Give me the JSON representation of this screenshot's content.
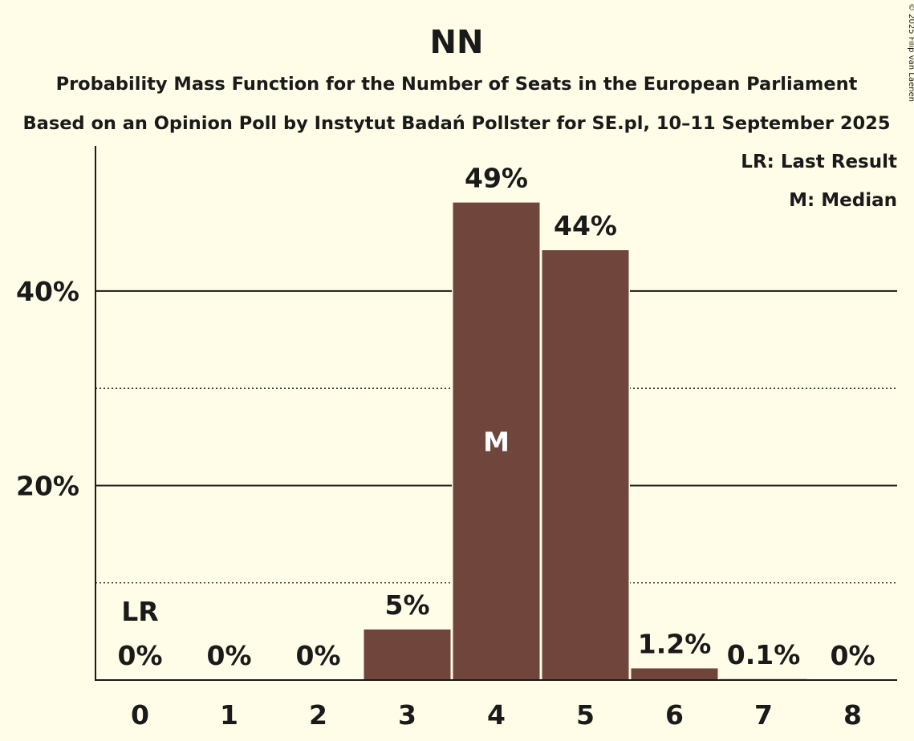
{
  "chart_data": {
    "type": "bar",
    "title": "NN",
    "subtitle_line1": "Probability Mass Function for the Number of Seats in the European Parliament",
    "subtitle_line2": "Based on an Opinion Poll by Instytut Badań Pollster for SE.pl, 10–11 September 2025",
    "copyright": "© 2025 Filip van Laenen",
    "categories": [
      "0",
      "1",
      "2",
      "3",
      "4",
      "5",
      "6",
      "7",
      "8"
    ],
    "values": [
      0,
      0,
      0,
      5.2,
      49.1,
      44.2,
      1.2,
      0.1,
      0
    ],
    "value_labels": [
      "0%",
      "0%",
      "0%",
      "5%",
      "49%",
      "44%",
      "1.2%",
      "0.1%",
      "0%"
    ],
    "y_ticks": [
      {
        "value": 20,
        "label": "20%"
      },
      {
        "value": 40,
        "label": "40%"
      }
    ],
    "y_minor_ticks": [
      10,
      30
    ],
    "ylim": [
      0,
      53.6
    ],
    "last_result_index": 0,
    "last_result_marker": "LR",
    "median_index": 4,
    "median_marker": "M",
    "legend": [
      "LR: Last Result",
      "M: Median"
    ],
    "legend_position": "top-right",
    "bar_color": "#70463C",
    "background_color": "#FFFDE7"
  }
}
